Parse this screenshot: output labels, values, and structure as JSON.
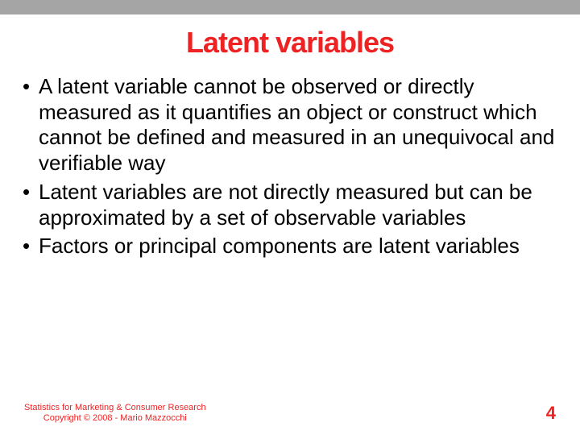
{
  "colors": {
    "title": "#ee2222",
    "topbar": "#a5a5a5",
    "body_text": "#000000",
    "footer_text": "#ee2222",
    "page_number": "#ee2222",
    "background": "#ffffff"
  },
  "typography": {
    "title_fontsize": 36,
    "body_fontsize": 26,
    "body_lineheight": 1.22,
    "footer_fontsize": 11,
    "pagenum_fontsize": 22,
    "font_family": "Trebuchet MS"
  },
  "title": "Latent variables",
  "bullets": [
    "A latent variable cannot be observed or directly measured as it quantifies an object or construct which cannot be defined and measured in an unequivocal and verifiable way",
    "Latent variables are not directly measured but can be approximated by a set of observable variables",
    "Factors or principal components are latent variables"
  ],
  "footer": {
    "line1": "Statistics for Marketing & Consumer Research",
    "line2": "Copyright © 2008 - Mario Mazzocchi"
  },
  "page_number": "4"
}
